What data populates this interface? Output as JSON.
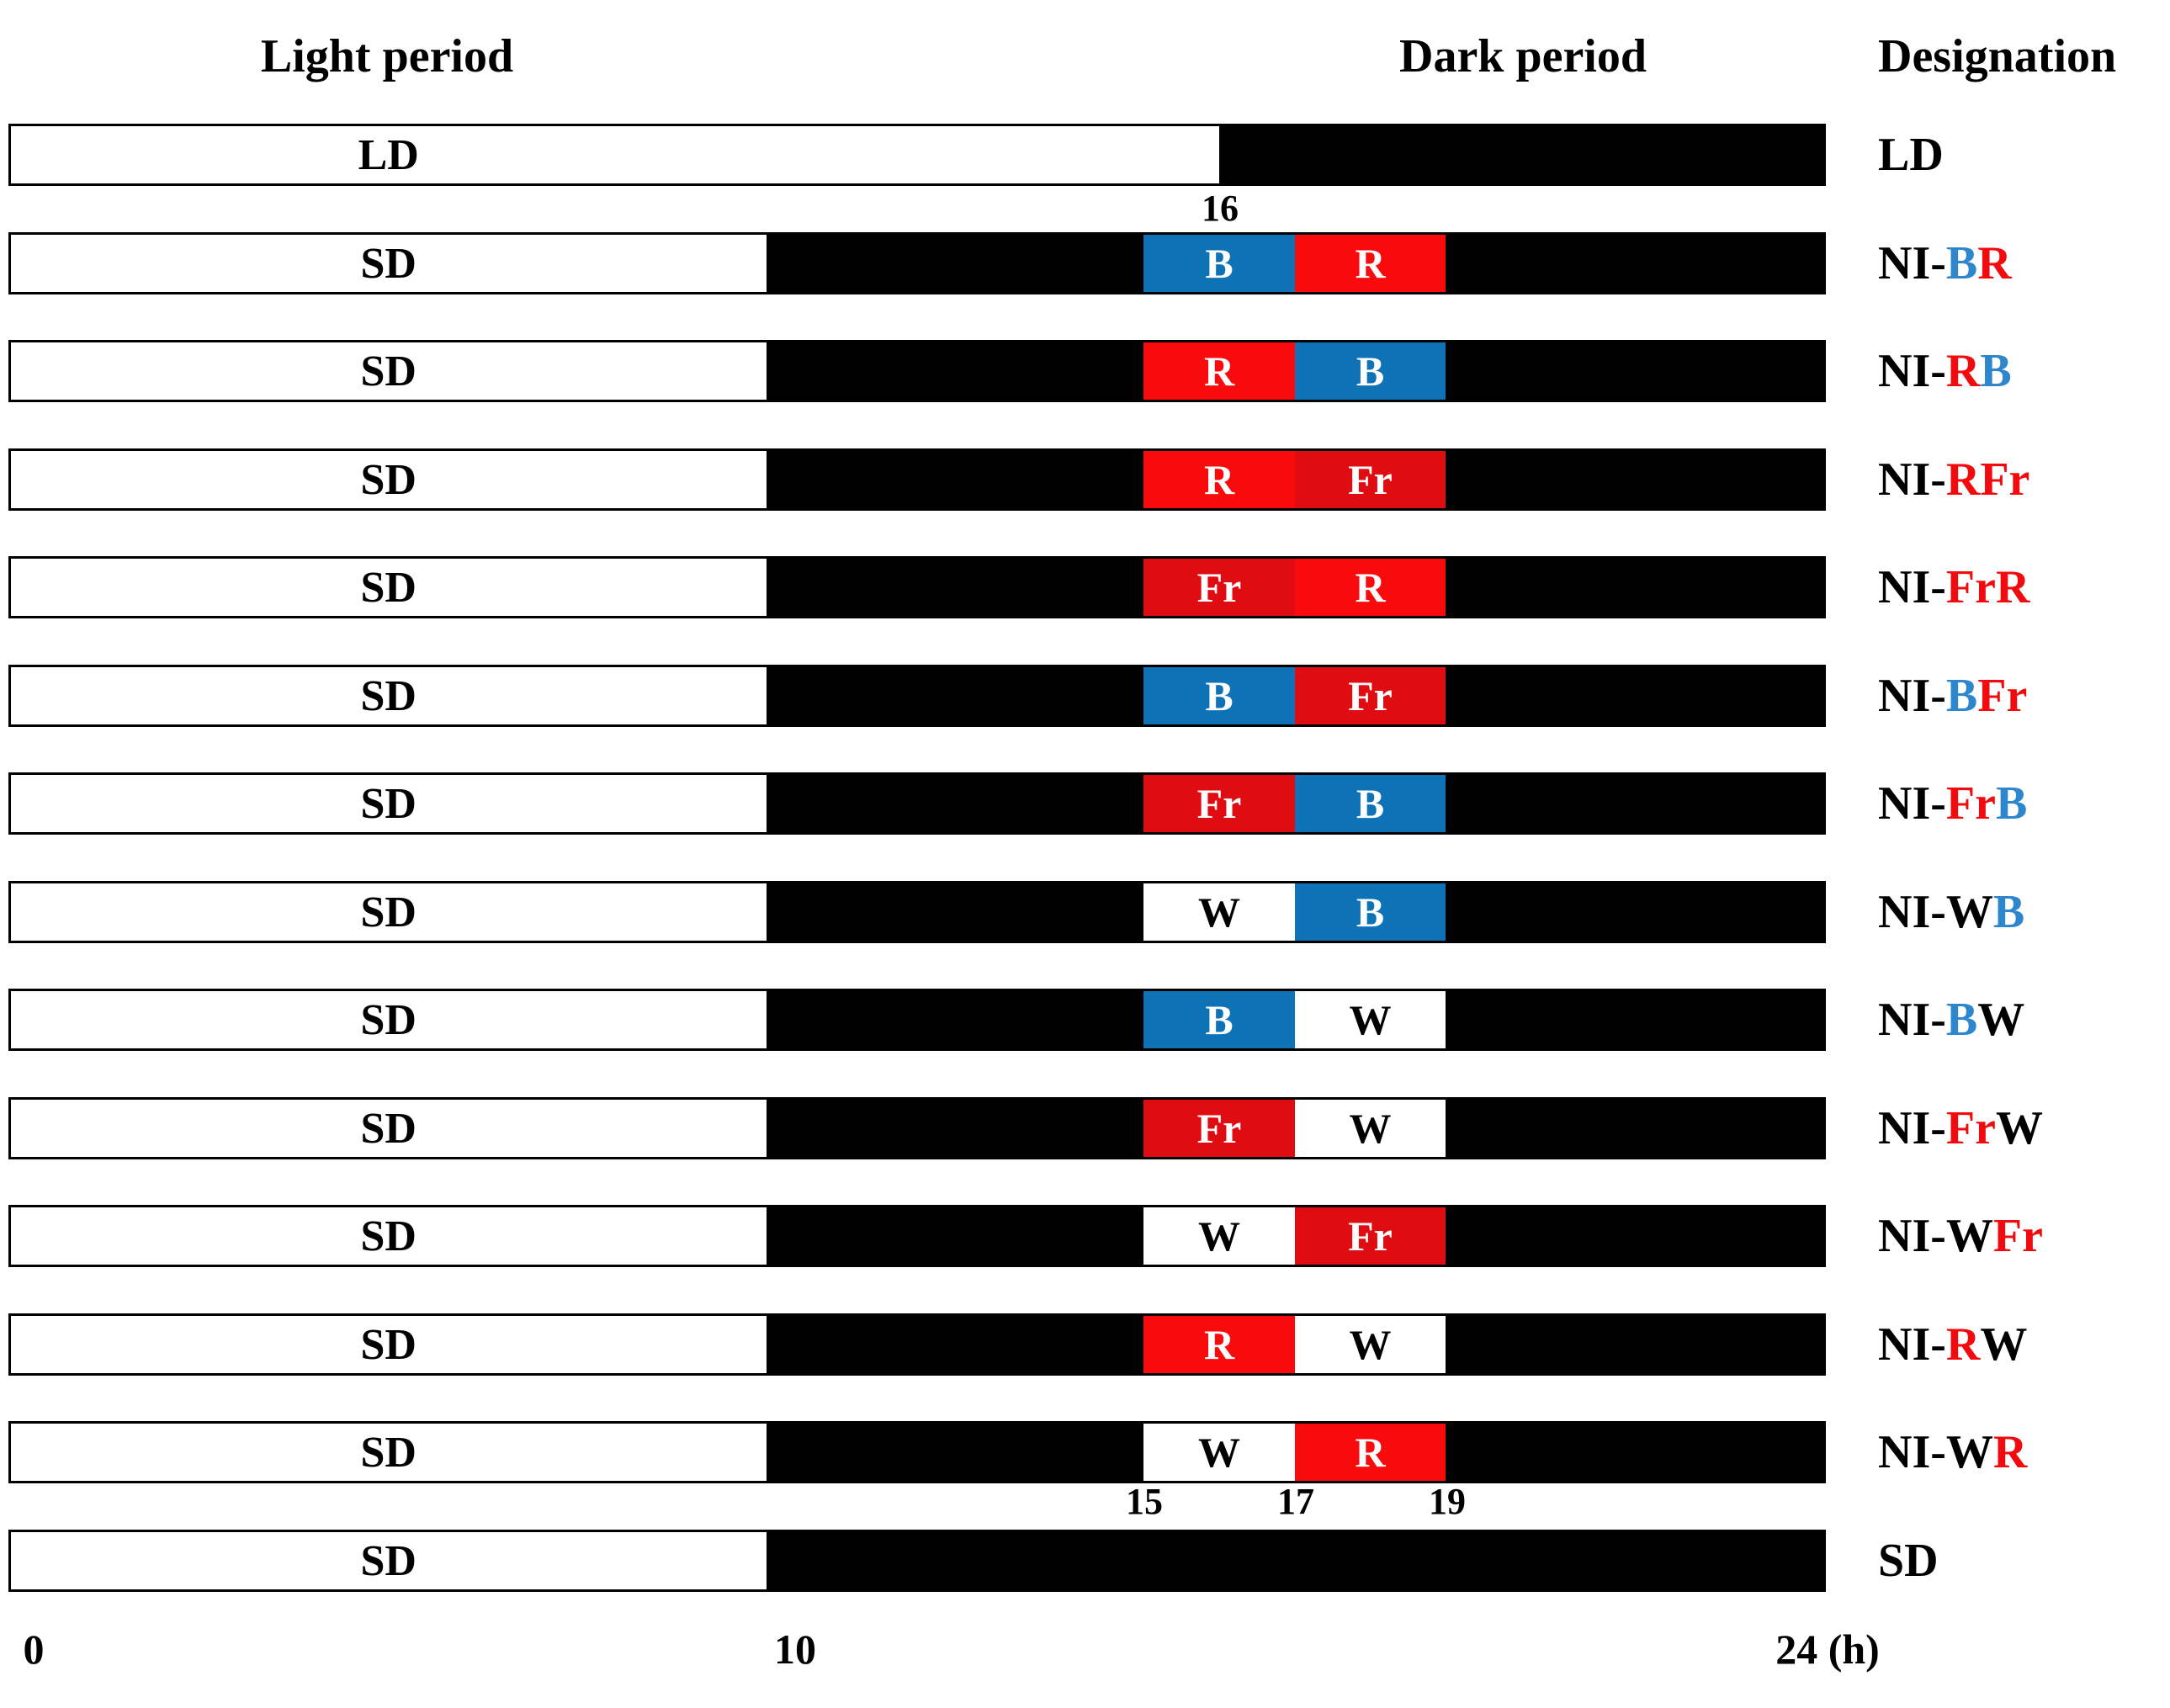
{
  "headers": {
    "light_period": "Light period",
    "dark_period": "Dark period",
    "designation": "Designation"
  },
  "axis": {
    "ld_tick": "16",
    "ni_ticks": [
      "15",
      "17",
      "19"
    ],
    "x_labels": [
      "0",
      "10",
      "24 (h)"
    ],
    "hours_total": 24
  },
  "colors": {
    "black": "#000000",
    "white": "#FFFFFF",
    "segment_blue": "#0D72B6",
    "segment_red": "#F90B0D",
    "segment_far_red": "#DF0D12",
    "designation_blue": "#2E86CC",
    "designation_red": "#F20B0E"
  },
  "rows": [
    {
      "bar_label": "LD",
      "light_end_h": 16,
      "segments": [],
      "designation": [
        {
          "text": "LD",
          "color": "black"
        }
      ]
    },
    {
      "bar_label": "SD",
      "light_end_h": 10,
      "segments": [
        {
          "label": "B",
          "from_h": 15,
          "to_h": 17,
          "fill": "segment_blue",
          "text": "white"
        },
        {
          "label": "R",
          "from_h": 17,
          "to_h": 19,
          "fill": "segment_red",
          "text": "white"
        }
      ],
      "designation": [
        {
          "text": "NI-",
          "color": "black"
        },
        {
          "text": "B",
          "color": "designation_blue"
        },
        {
          "text": "R",
          "color": "designation_red"
        }
      ]
    },
    {
      "bar_label": "SD",
      "light_end_h": 10,
      "segments": [
        {
          "label": "R",
          "from_h": 15,
          "to_h": 17,
          "fill": "segment_red",
          "text": "white"
        },
        {
          "label": "B",
          "from_h": 17,
          "to_h": 19,
          "fill": "segment_blue",
          "text": "white"
        }
      ],
      "designation": [
        {
          "text": "NI-",
          "color": "black"
        },
        {
          "text": "R",
          "color": "designation_red"
        },
        {
          "text": "B",
          "color": "designation_blue"
        }
      ]
    },
    {
      "bar_label": "SD",
      "light_end_h": 10,
      "segments": [
        {
          "label": "R",
          "from_h": 15,
          "to_h": 17,
          "fill": "segment_red",
          "text": "white"
        },
        {
          "label": "Fr",
          "from_h": 17,
          "to_h": 19,
          "fill": "segment_far_red",
          "text": "white"
        }
      ],
      "designation": [
        {
          "text": "NI-",
          "color": "black"
        },
        {
          "text": "R",
          "color": "designation_red"
        },
        {
          "text": "Fr",
          "color": "designation_red"
        }
      ]
    },
    {
      "bar_label": "SD",
      "light_end_h": 10,
      "segments": [
        {
          "label": "Fr",
          "from_h": 15,
          "to_h": 17,
          "fill": "segment_far_red",
          "text": "white"
        },
        {
          "label": "R",
          "from_h": 17,
          "to_h": 19,
          "fill": "segment_red",
          "text": "white"
        }
      ],
      "designation": [
        {
          "text": "NI-",
          "color": "black"
        },
        {
          "text": "Fr",
          "color": "designation_red"
        },
        {
          "text": "R",
          "color": "designation_red"
        }
      ]
    },
    {
      "bar_label": "SD",
      "light_end_h": 10,
      "segments": [
        {
          "label": "B",
          "from_h": 15,
          "to_h": 17,
          "fill": "segment_blue",
          "text": "white"
        },
        {
          "label": "Fr",
          "from_h": 17,
          "to_h": 19,
          "fill": "segment_far_red",
          "text": "white"
        }
      ],
      "designation": [
        {
          "text": "NI-",
          "color": "black"
        },
        {
          "text": "B",
          "color": "designation_blue"
        },
        {
          "text": "Fr",
          "color": "designation_red"
        }
      ]
    },
    {
      "bar_label": "SD",
      "light_end_h": 10,
      "segments": [
        {
          "label": "Fr",
          "from_h": 15,
          "to_h": 17,
          "fill": "segment_far_red",
          "text": "white"
        },
        {
          "label": "B",
          "from_h": 17,
          "to_h": 19,
          "fill": "segment_blue",
          "text": "white"
        }
      ],
      "designation": [
        {
          "text": "NI-",
          "color": "black"
        },
        {
          "text": "Fr",
          "color": "designation_red"
        },
        {
          "text": "B",
          "color": "designation_blue"
        }
      ]
    },
    {
      "bar_label": "SD",
      "light_end_h": 10,
      "segments": [
        {
          "label": "W",
          "from_h": 15,
          "to_h": 17,
          "fill": "white",
          "text": "black"
        },
        {
          "label": "B",
          "from_h": 17,
          "to_h": 19,
          "fill": "segment_blue",
          "text": "white"
        }
      ],
      "designation": [
        {
          "text": "NI-",
          "color": "black"
        },
        {
          "text": "W",
          "color": "black"
        },
        {
          "text": "B",
          "color": "designation_blue"
        }
      ]
    },
    {
      "bar_label": "SD",
      "light_end_h": 10,
      "segments": [
        {
          "label": "B",
          "from_h": 15,
          "to_h": 17,
          "fill": "segment_blue",
          "text": "white"
        },
        {
          "label": "W",
          "from_h": 17,
          "to_h": 19,
          "fill": "white",
          "text": "black"
        }
      ],
      "designation": [
        {
          "text": "NI-",
          "color": "black"
        },
        {
          "text": "B",
          "color": "designation_blue"
        },
        {
          "text": "W",
          "color": "black"
        }
      ]
    },
    {
      "bar_label": "SD",
      "light_end_h": 10,
      "segments": [
        {
          "label": "Fr",
          "from_h": 15,
          "to_h": 17,
          "fill": "segment_far_red",
          "text": "white"
        },
        {
          "label": "W",
          "from_h": 17,
          "to_h": 19,
          "fill": "white",
          "text": "black"
        }
      ],
      "designation": [
        {
          "text": "NI-",
          "color": "black"
        },
        {
          "text": "Fr",
          "color": "designation_red"
        },
        {
          "text": "W",
          "color": "black"
        }
      ]
    },
    {
      "bar_label": "SD",
      "light_end_h": 10,
      "segments": [
        {
          "label": "W",
          "from_h": 15,
          "to_h": 17,
          "fill": "white",
          "text": "black"
        },
        {
          "label": "Fr",
          "from_h": 17,
          "to_h": 19,
          "fill": "segment_far_red",
          "text": "white"
        }
      ],
      "designation": [
        {
          "text": "NI-",
          "color": "black"
        },
        {
          "text": "W",
          "color": "black"
        },
        {
          "text": "Fr",
          "color": "designation_red"
        }
      ]
    },
    {
      "bar_label": "SD",
      "light_end_h": 10,
      "segments": [
        {
          "label": "R",
          "from_h": 15,
          "to_h": 17,
          "fill": "segment_red",
          "text": "white"
        },
        {
          "label": "W",
          "from_h": 17,
          "to_h": 19,
          "fill": "white",
          "text": "black"
        }
      ],
      "designation": [
        {
          "text": "NI-",
          "color": "black"
        },
        {
          "text": "R",
          "color": "designation_red"
        },
        {
          "text": "W",
          "color": "black"
        }
      ]
    },
    {
      "bar_label": "SD",
      "light_end_h": 10,
      "segments": [
        {
          "label": "W",
          "from_h": 15,
          "to_h": 17,
          "fill": "white",
          "text": "black"
        },
        {
          "label": "R",
          "from_h": 17,
          "to_h": 19,
          "fill": "segment_red",
          "text": "white"
        }
      ],
      "designation": [
        {
          "text": "NI-",
          "color": "black"
        },
        {
          "text": "W",
          "color": "black"
        },
        {
          "text": "R",
          "color": "designation_red"
        }
      ]
    },
    {
      "bar_label": "SD",
      "light_end_h": 10,
      "segments": [],
      "designation": [
        {
          "text": "SD",
          "color": "black"
        }
      ]
    }
  ],
  "chart_data": {
    "type": "bar",
    "x_unit": "h",
    "x_range": [
      0,
      24
    ],
    "x_ticks_labeled": [
      0,
      10,
      15,
      16,
      17,
      19,
      24
    ],
    "treatments": [
      {
        "name": "LD",
        "light_period_h": [
          0,
          16
        ],
        "night_interruption": []
      },
      {
        "name": "NI-BR",
        "light_period_h": [
          0,
          10
        ],
        "night_interruption": [
          [
            "B",
            15,
            17
          ],
          [
            "R",
            17,
            19
          ]
        ]
      },
      {
        "name": "NI-RB",
        "light_period_h": [
          0,
          10
        ],
        "night_interruption": [
          [
            "R",
            15,
            17
          ],
          [
            "B",
            17,
            19
          ]
        ]
      },
      {
        "name": "NI-RFr",
        "light_period_h": [
          0,
          10
        ],
        "night_interruption": [
          [
            "R",
            15,
            17
          ],
          [
            "Fr",
            17,
            19
          ]
        ]
      },
      {
        "name": "NI-FrR",
        "light_period_h": [
          0,
          10
        ],
        "night_interruption": [
          [
            "Fr",
            15,
            17
          ],
          [
            "R",
            17,
            19
          ]
        ]
      },
      {
        "name": "NI-BFr",
        "light_period_h": [
          0,
          10
        ],
        "night_interruption": [
          [
            "B",
            15,
            17
          ],
          [
            "Fr",
            17,
            19
          ]
        ]
      },
      {
        "name": "NI-FrB",
        "light_period_h": [
          0,
          10
        ],
        "night_interruption": [
          [
            "Fr",
            15,
            17
          ],
          [
            "B",
            17,
            19
          ]
        ]
      },
      {
        "name": "NI-WB",
        "light_period_h": [
          0,
          10
        ],
        "night_interruption": [
          [
            "W",
            15,
            17
          ],
          [
            "B",
            17,
            19
          ]
        ]
      },
      {
        "name": "NI-BW",
        "light_period_h": [
          0,
          10
        ],
        "night_interruption": [
          [
            "B",
            15,
            17
          ],
          [
            "W",
            17,
            19
          ]
        ]
      },
      {
        "name": "NI-FrW",
        "light_period_h": [
          0,
          10
        ],
        "night_interruption": [
          [
            "Fr",
            15,
            17
          ],
          [
            "W",
            17,
            19
          ]
        ]
      },
      {
        "name": "NI-WFr",
        "light_period_h": [
          0,
          10
        ],
        "night_interruption": [
          [
            "W",
            15,
            17
          ],
          [
            "Fr",
            17,
            19
          ]
        ]
      },
      {
        "name": "NI-RW",
        "light_period_h": [
          0,
          10
        ],
        "night_interruption": [
          [
            "R",
            15,
            17
          ],
          [
            "W",
            17,
            19
          ]
        ]
      },
      {
        "name": "NI-WR",
        "light_period_h": [
          0,
          10
        ],
        "night_interruption": [
          [
            "W",
            15,
            17
          ],
          [
            "R",
            17,
            19
          ]
        ]
      },
      {
        "name": "SD",
        "light_period_h": [
          0,
          10
        ],
        "night_interruption": []
      }
    ]
  }
}
